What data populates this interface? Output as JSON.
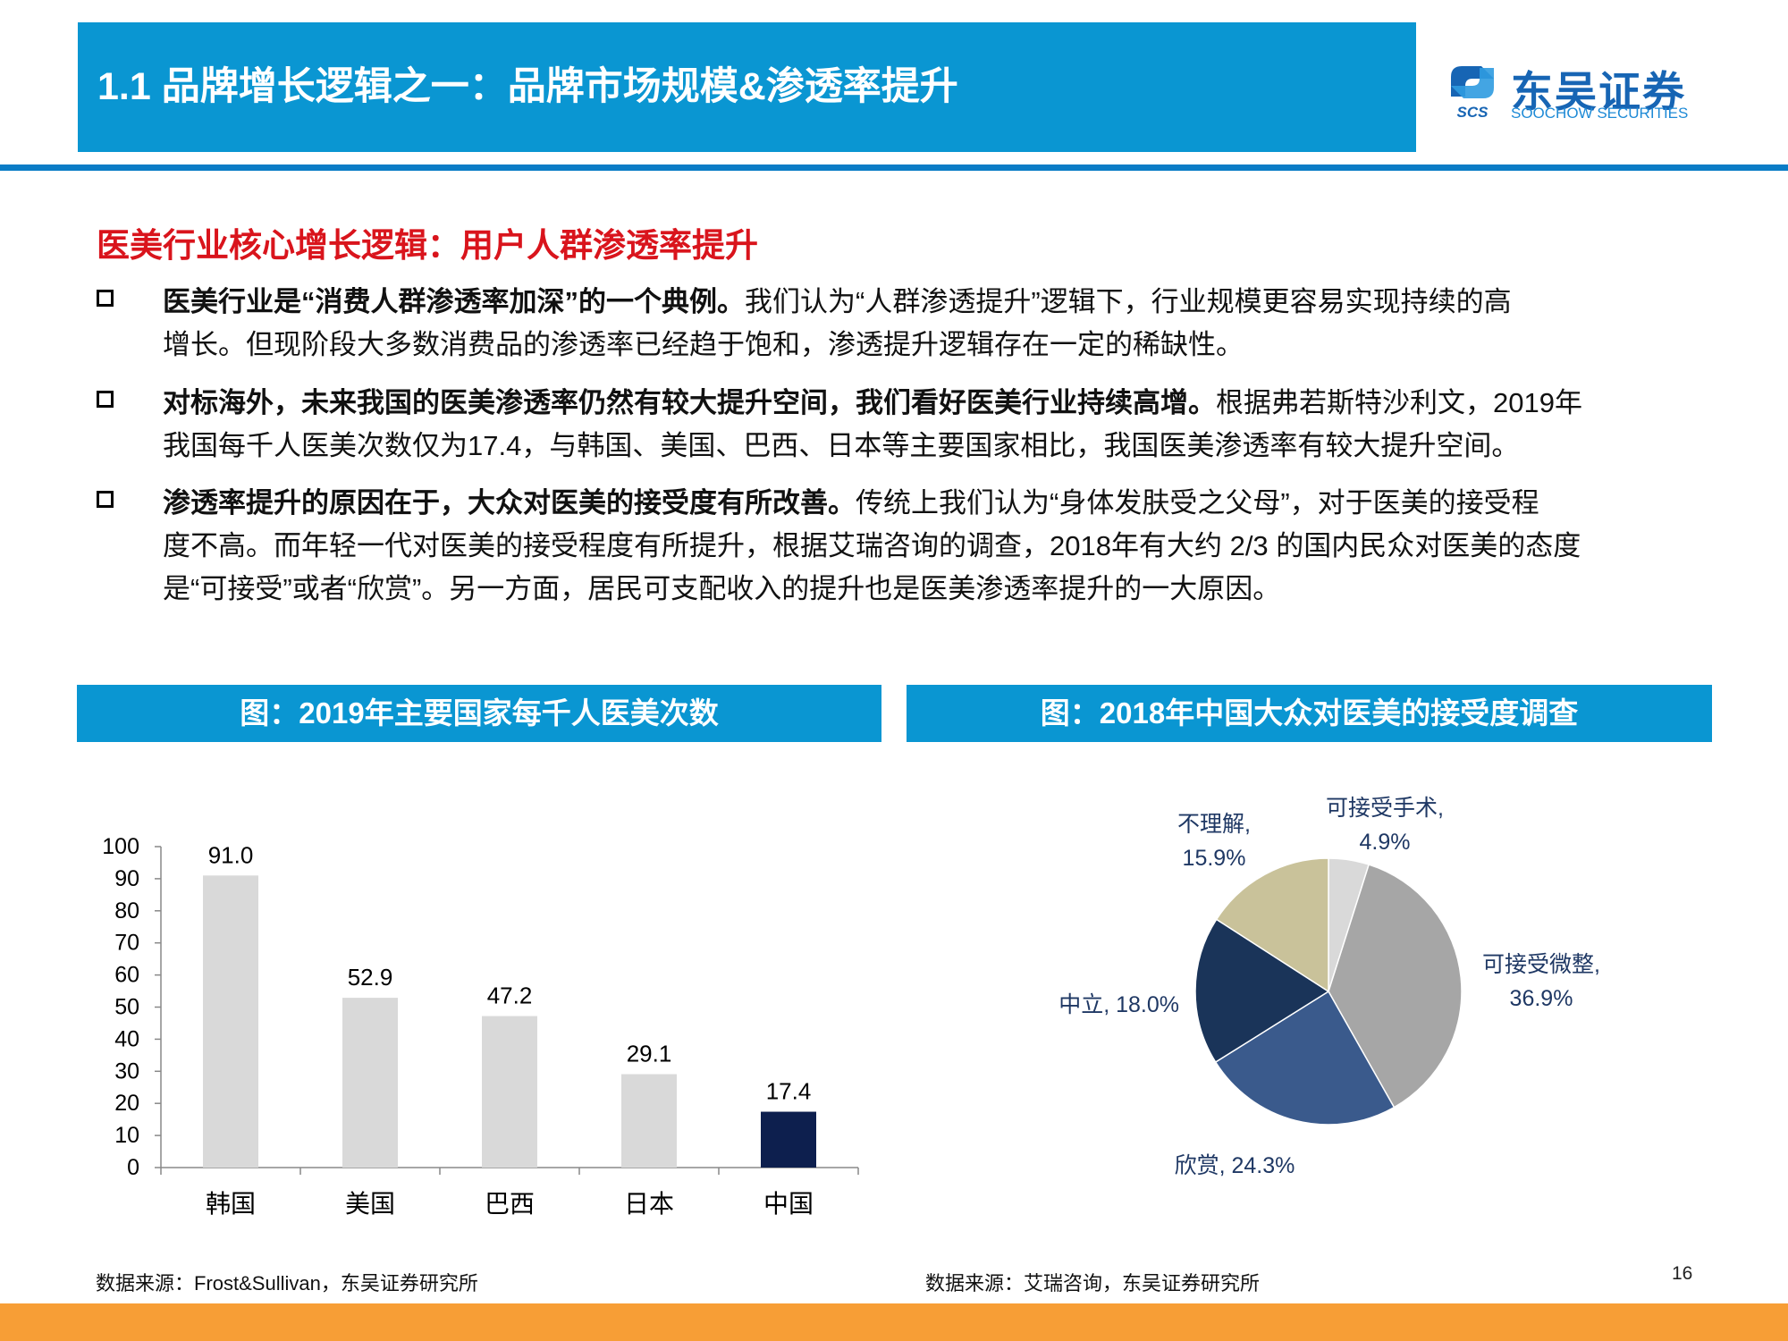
{
  "header": {
    "title": "1.1 品牌增长逻辑之一：品牌市场规模&渗透率提升",
    "logo_cn": "东吴证券",
    "logo_en": "SOOCHOW SECURITIES",
    "logo_mark": "SCS"
  },
  "subtitle": "医美行业核心增长逻辑：用户人群渗透率提升",
  "bullets": [
    {
      "bold": "医美行业是“消费人群渗透率加深”的一个典例。",
      "line1_rest": "我们认为“人群渗透提升”逻辑下，行业规模更容易实现持续的高",
      "rest": [
        "增长。但现阶段大多数消费品的渗透率已经趋于饱和，渗透提升逻辑存在一定的稀缺性。"
      ]
    },
    {
      "bold": "对标海外，未来我国的医美渗透率仍然有较大提升空间，我们看好医美行业持续高增。",
      "line1_rest": "根据弗若斯特沙利文，2019年",
      "rest": [
        "我国每千人医美次数仅为17.4，与韩国、美国、巴西、日本等主要国家相比，我国医美渗透率有较大提升空间。"
      ]
    },
    {
      "bold": "渗透率提升的原因在于，大众对医美的接受度有所改善。",
      "line1_rest": "传统上我们认为“身体发肤受之父母”，对于医美的接受程",
      "rest": [
        "度不高。而年轻一代对医美的接受程度有所提升，根据艾瑞咨询的调查，2018年有大约 2/3 的国内民众对医美的态度",
        "是“可接受”或者“欣赏”。另一方面，居民可支配收入的提升也是医美渗透率提升的一大原因。"
      ]
    }
  ],
  "left_panel": {
    "heading": "图：2019年主要国家每千人医美次数",
    "source": "数据来源：Frost&Sullivan，东吴证券研究所"
  },
  "right_panel": {
    "heading": "图：2018年中国大众对医美的接受度调查",
    "source": "数据来源：艾瑞咨询，东吴证券研究所"
  },
  "page_number": "16",
  "colors": {
    "header_blue": "#0a96d2",
    "subtitle_red": "#d9141c",
    "bar_default": "#d9d9d9",
    "bar_highlight": "#0d1f4e",
    "bottom_band": "#f79e36"
  },
  "chart_data": [
    {
      "type": "bar",
      "categories": [
        "韩国",
        "美国",
        "巴西",
        "日本",
        "中国"
      ],
      "values": [
        91.0,
        52.9,
        47.2,
        29.1,
        17.4
      ],
      "value_labels": [
        "91.0",
        "52.9",
        "47.2",
        "29.1",
        "17.4"
      ],
      "highlight_index": 4,
      "ylim": [
        0,
        100
      ],
      "yticks": [
        "0",
        "10",
        "20",
        "30",
        "40",
        "50",
        "60",
        "70",
        "80",
        "90",
        "100"
      ],
      "title": "",
      "xlabel": "",
      "ylabel": "",
      "grid": false,
      "legend": "none"
    },
    {
      "type": "pie",
      "start": "12 o'clock",
      "direction": "clockwise",
      "slices": [
        {
          "label": "可接受手术",
          "value": 4.9,
          "pct": "4.9%",
          "color": "#d9d9d9"
        },
        {
          "label": "可接受微整",
          "value": 36.9,
          "pct": "36.9%",
          "color": "#a6a6a6"
        },
        {
          "label": "欣赏",
          "value": 24.3,
          "pct": "24.3%",
          "color": "#3a5a8c"
        },
        {
          "label": "中立",
          "value": 18.0,
          "pct": "18.0%",
          "color": "#1a3459"
        },
        {
          "label": "不理解",
          "value": 15.9,
          "pct": "15.9%",
          "color": "#c9c29a"
        }
      ],
      "label_color": "#1f3864",
      "title": "",
      "legend": "none"
    }
  ]
}
